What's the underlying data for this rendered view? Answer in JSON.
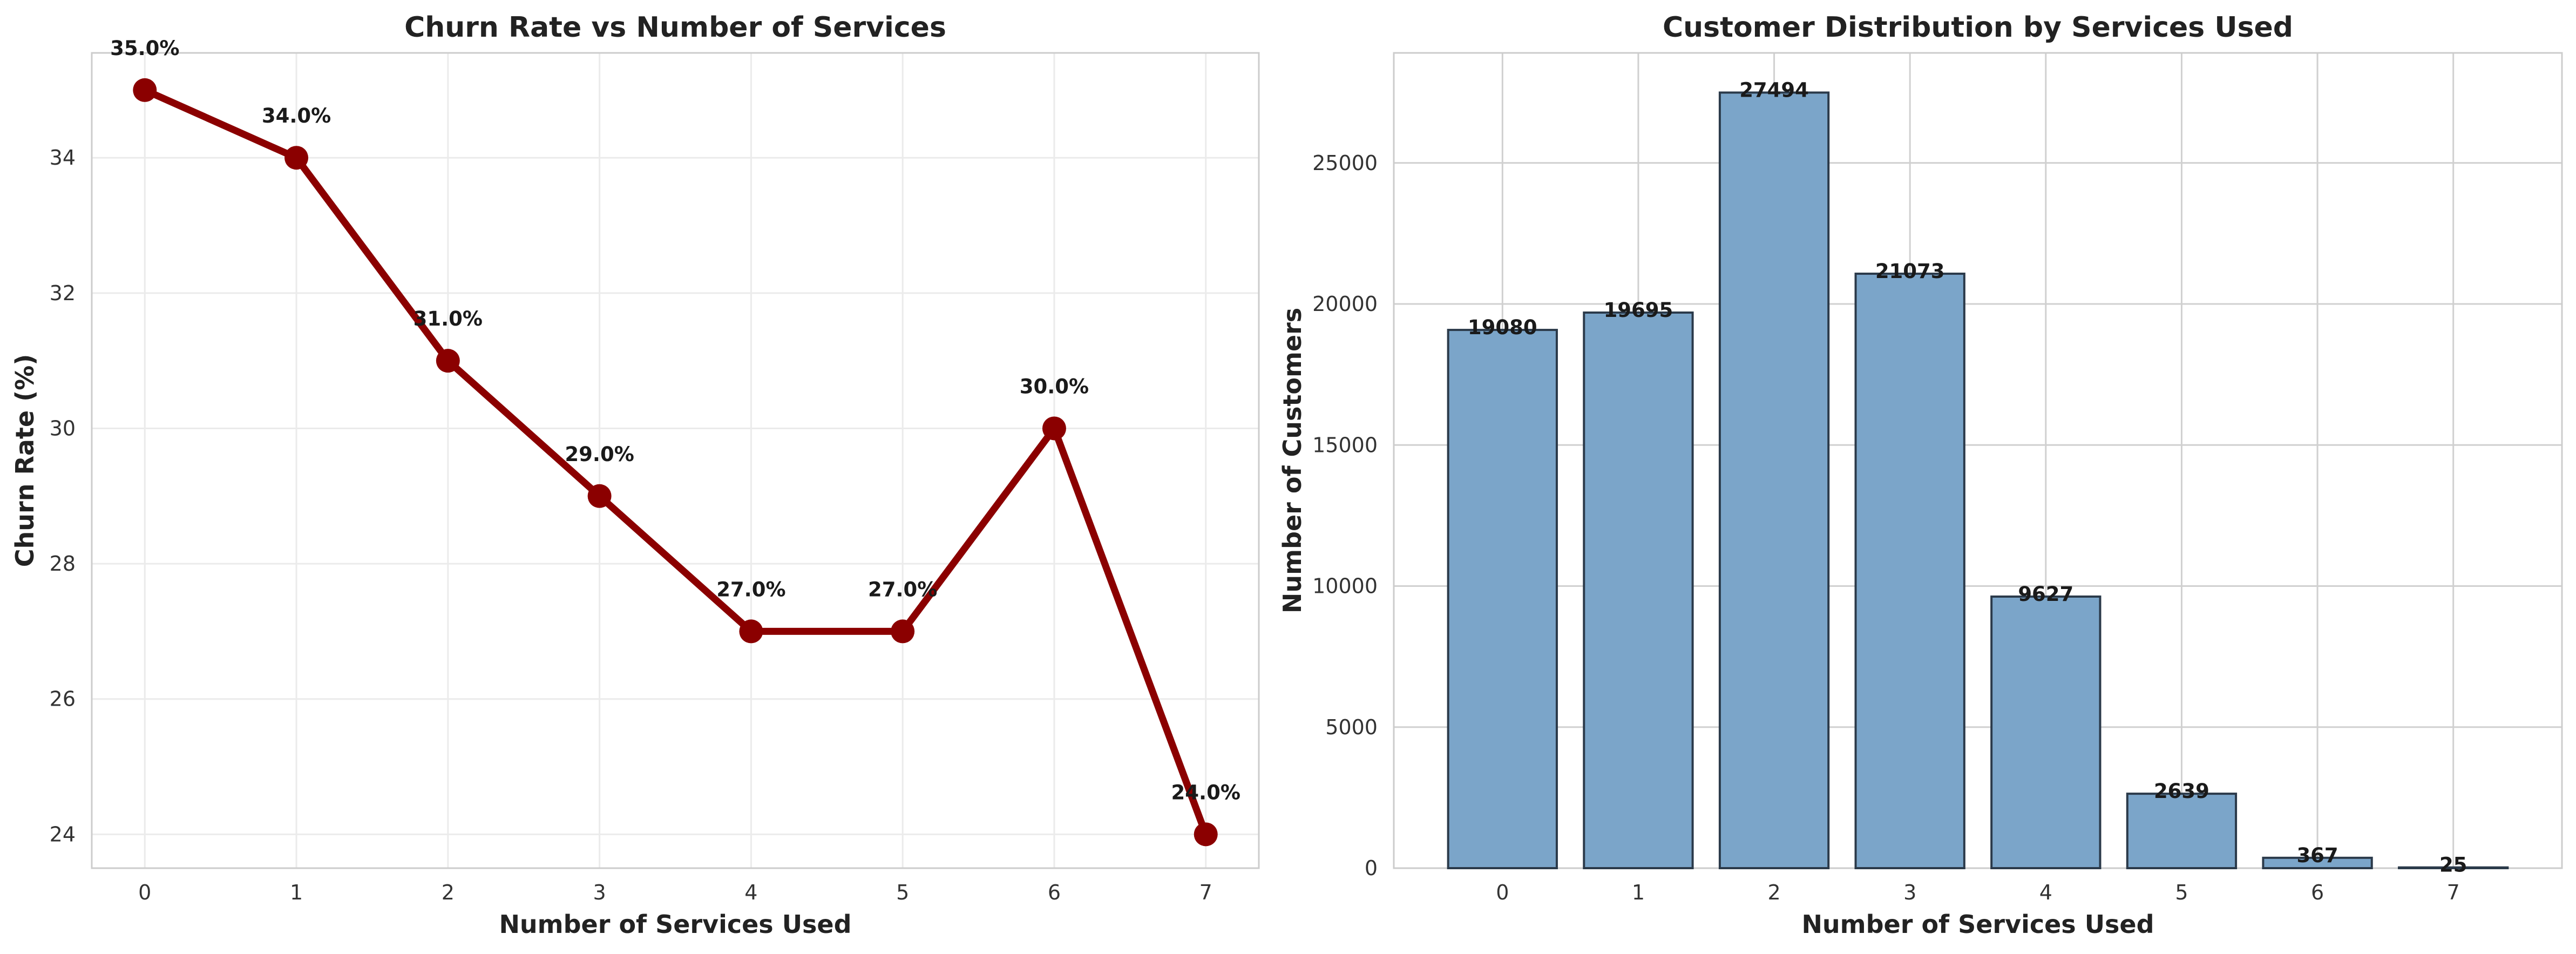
{
  "colors": {
    "line": "#8b0000",
    "bar_fill": "#7ba5c9",
    "bar_edge": "#2b3a4a",
    "grid_left": "#ebebeb",
    "grid_right": "#d0d0d0"
  },
  "chart_data": [
    {
      "type": "line",
      "title": "Churn Rate vs Number of Services",
      "xlabel": "Number of Services Used",
      "ylabel": "Churn Rate (%)",
      "x": [
        0,
        1,
        2,
        3,
        4,
        5,
        6,
        7
      ],
      "values": [
        35.0,
        34.0,
        31.0,
        29.0,
        27.0,
        27.0,
        30.0,
        24.0
      ],
      "data_labels": [
        "35.0%",
        "34.0%",
        "31.0%",
        "29.0%",
        "27.0%",
        "27.0%",
        "30.0%",
        "24.0%"
      ],
      "xlim": [
        -0.35,
        7.35
      ],
      "ylim": [
        23.5,
        35.55
      ],
      "yticks": [
        24,
        26,
        28,
        30,
        32,
        34
      ],
      "grid": true,
      "legend": "none"
    },
    {
      "type": "bar",
      "title": "Customer Distribution by Services Used",
      "xlabel": "Number of Services Used",
      "ylabel": "Number of Customers",
      "categories": [
        "0",
        "1",
        "2",
        "3",
        "4",
        "5",
        "6",
        "7"
      ],
      "values": [
        19080,
        19695,
        27494,
        21073,
        9627,
        2639,
        367,
        25
      ],
      "xlim": [
        -0.8,
        7.8
      ],
      "ylim": [
        0,
        28900
      ],
      "yticks": [
        0,
        5000,
        10000,
        15000,
        20000,
        25000
      ],
      "grid": true,
      "legend": "none"
    }
  ]
}
